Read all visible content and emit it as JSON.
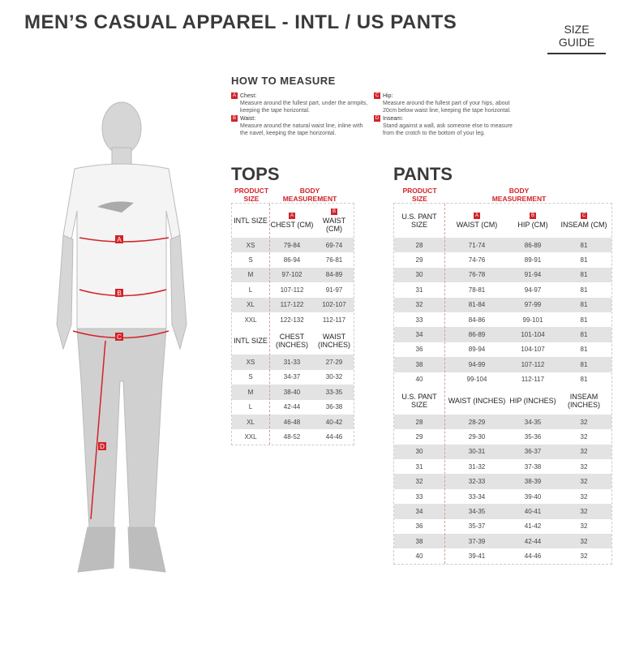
{
  "title": "MEN’S CASUAL APPAREL - INTL / US PANTS",
  "size_guide": "SIZE GUIDE",
  "how_to_measure": {
    "heading": "HOW TO MEASURE",
    "items": [
      {
        "badge": "A",
        "label": "Chest:",
        "text": "Measure around the fullest part, under the armpits, keeping the tape horizontal."
      },
      {
        "badge": "B",
        "label": "Waist:",
        "text": "Measure around the natural waist line, inline with the navel, keeping the tape horizontal."
      },
      {
        "badge": "C",
        "label": "Hip:",
        "text": "Measure around the fullest part of your hips, about 20cm below waist line, keeping the tape horizontal."
      },
      {
        "badge": "D",
        "label": "Inseam:",
        "text": "Stand against a wall, ask someone else to measure from the crotch to the bottom of your leg."
      }
    ]
  },
  "figure_labels": [
    "A",
    "B",
    "C",
    "D"
  ],
  "accent": "#d2232a",
  "tops": {
    "title": "TOPS",
    "product_size": "PRODUCT SIZE",
    "body_measurement": "BODY MEASUREMENT",
    "badges": [
      "A",
      "B"
    ],
    "cm": {
      "headers": [
        "INTL SIZE",
        "CHEST (CM)",
        "WAIST (CM)"
      ],
      "rows": [
        [
          "XS",
          "79-84",
          "69-74"
        ],
        [
          "S",
          "86-94",
          "76-81"
        ],
        [
          "M",
          "97-102",
          "84-89"
        ],
        [
          "L",
          "107-112",
          "91-97"
        ],
        [
          "XL",
          "117-122",
          "102-107"
        ],
        [
          "XXL",
          "122-132",
          "112-117"
        ]
      ]
    },
    "inches": {
      "headers": [
        "INTL SIZE",
        "CHEST (INCHES)",
        "WAIST (INCHES)"
      ],
      "rows": [
        [
          "XS",
          "31-33",
          "27-29"
        ],
        [
          "S",
          "34-37",
          "30-32"
        ],
        [
          "M",
          "38-40",
          "33-35"
        ],
        [
          "L",
          "42-44",
          "36-38"
        ],
        [
          "XL",
          "46-48",
          "40-42"
        ],
        [
          "XXL",
          "48-52",
          "44-46"
        ]
      ]
    }
  },
  "pants": {
    "title": "PANTS",
    "product_size": "PRODUCT SIZE",
    "body_measurement": "BODY MEASUREMENT",
    "badges": [
      "A",
      "B",
      "C"
    ],
    "cm": {
      "headers": [
        "U.S. PANT SIZE",
        "WAIST (CM)",
        "HIP (CM)",
        "INSEAM (CM)"
      ],
      "rows": [
        [
          "28",
          "71-74",
          "86-89",
          "81"
        ],
        [
          "29",
          "74-76",
          "89-91",
          "81"
        ],
        [
          "30",
          "76-78",
          "91-94",
          "81"
        ],
        [
          "31",
          "78-81",
          "94-97",
          "81"
        ],
        [
          "32",
          "81-84",
          "97-99",
          "81"
        ],
        [
          "33",
          "84-86",
          "99-101",
          "81"
        ],
        [
          "34",
          "86-89",
          "101-104",
          "81"
        ],
        [
          "36",
          "89-94",
          "104-107",
          "81"
        ],
        [
          "38",
          "94-99",
          "107-112",
          "81"
        ],
        [
          "40",
          "99-104",
          "112-117",
          "81"
        ]
      ]
    },
    "inches": {
      "headers": [
        "U.S. PANT SIZE",
        "WAIST (INCHES)",
        "HIP (INCHES)",
        "INSEAM (INCHES)"
      ],
      "rows": [
        [
          "28",
          "28-29",
          "34-35",
          "32"
        ],
        [
          "29",
          "29-30",
          "35-36",
          "32"
        ],
        [
          "30",
          "30-31",
          "36-37",
          "32"
        ],
        [
          "31",
          "31-32",
          "37-38",
          "32"
        ],
        [
          "32",
          "32-33",
          "38-39",
          "32"
        ],
        [
          "33",
          "33-34",
          "39-40",
          "32"
        ],
        [
          "34",
          "34-35",
          "40-41",
          "32"
        ],
        [
          "36",
          "35-37",
          "41-42",
          "32"
        ],
        [
          "38",
          "37-39",
          "42-44",
          "32"
        ],
        [
          "40",
          "39-41",
          "44-46",
          "32"
        ]
      ]
    }
  }
}
